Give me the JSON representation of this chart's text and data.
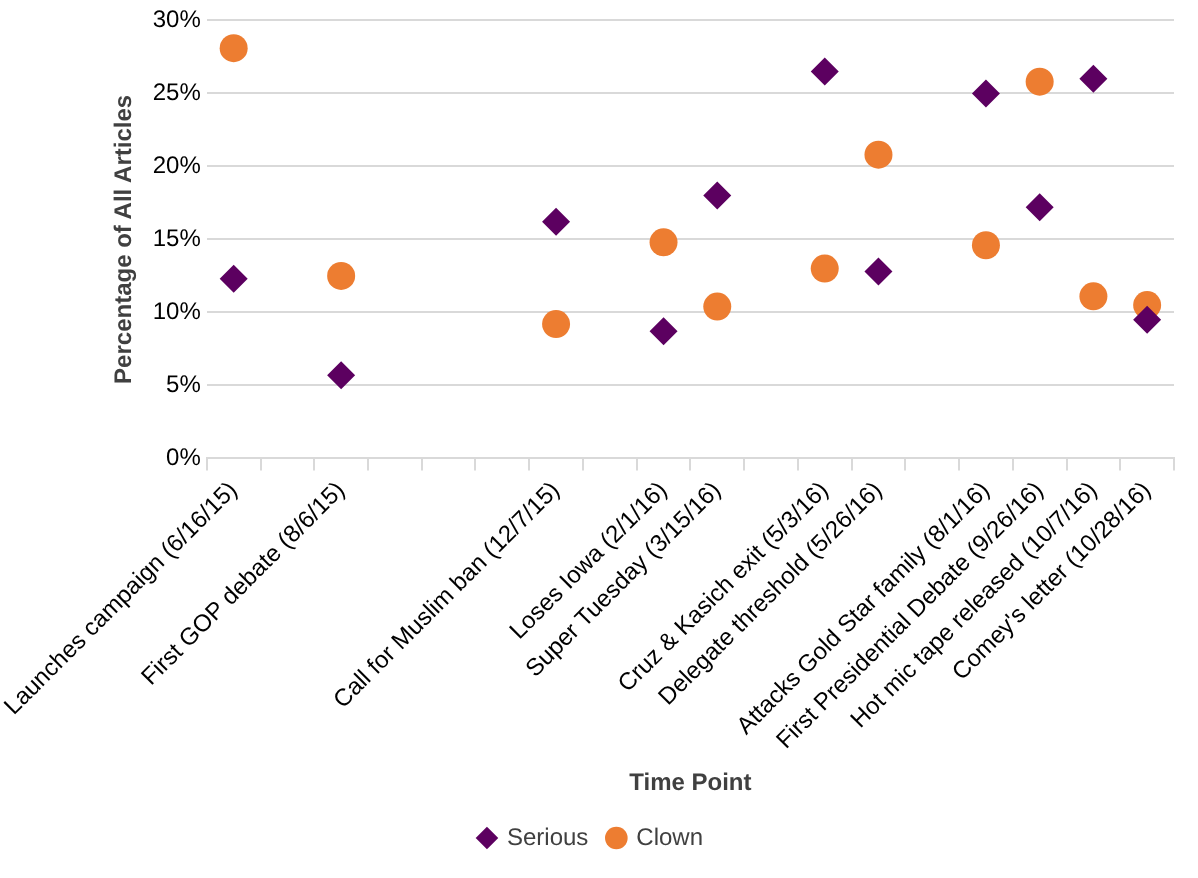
{
  "chart_data": {
    "type": "scatter",
    "xlabel": "Time Point",
    "ylabel": "Percentage of All Articles",
    "categories": [
      "Launches campaign (6/16/15)",
      null,
      "First GOP debate (8/6/15)",
      null,
      null,
      null,
      "Call for Muslim ban (12/7/15)",
      null,
      "Loses Iowa (2/1/16)",
      "Super Tuesday (3/15/16)",
      null,
      "Cruz & Kasich exit (5/3/16)",
      "Delegate threshold (5/26/16)",
      null,
      "Attacks Gold Star family (8/1/16)",
      "First Presidential Debate (9/26/16)",
      "Hot mic tape released (10/7/16)",
      "Comey's letter (10/28/16)"
    ],
    "series": [
      {
        "name": "Serious",
        "color": "#5c0060",
        "marker": "diamond",
        "values": [
          12.3,
          null,
          5.7,
          null,
          null,
          null,
          16.2,
          null,
          8.7,
          18.0,
          null,
          26.5,
          12.8,
          null,
          25.0,
          17.2,
          26.0,
          9.5
        ]
      },
      {
        "name": "Clown",
        "color": "#ed7d31",
        "marker": "circle",
        "values": [
          28.1,
          null,
          12.5,
          null,
          null,
          null,
          9.2,
          null,
          14.8,
          10.4,
          null,
          13.0,
          20.8,
          null,
          14.6,
          25.8,
          11.1,
          10.5
        ]
      }
    ],
    "ylim": [
      0,
      30
    ],
    "yticks": [
      {
        "value": 0,
        "label": "0%"
      },
      {
        "value": 5,
        "label": "5%"
      },
      {
        "value": 10,
        "label": "10%"
      },
      {
        "value": 15,
        "label": "15%"
      },
      {
        "value": 20,
        "label": "20%"
      },
      {
        "value": 25,
        "label": "25%"
      },
      {
        "value": 30,
        "label": "30%"
      }
    ],
    "grid": "y",
    "legend": "bottom"
  }
}
